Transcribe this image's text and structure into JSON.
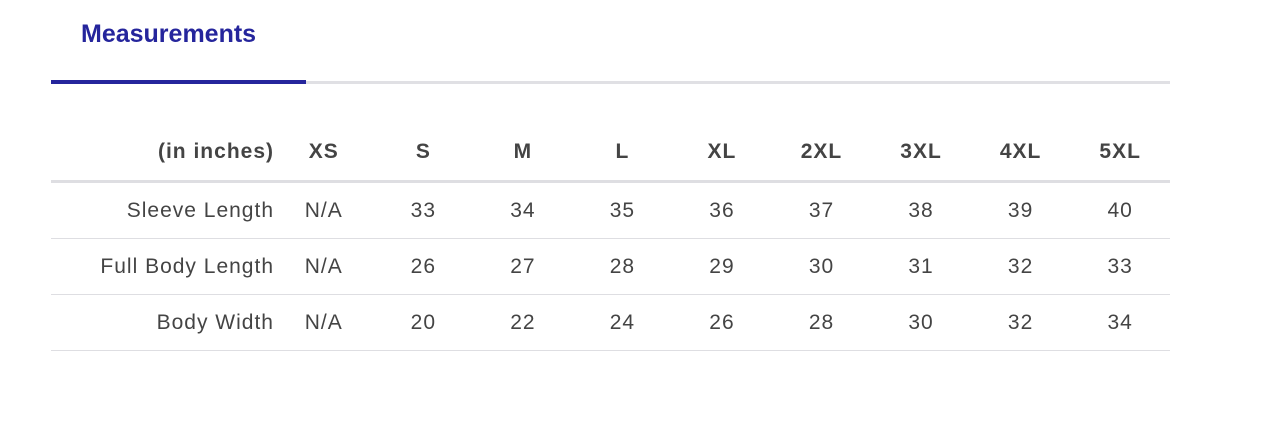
{
  "tabs": [
    {
      "label": "Measurements",
      "active": true
    }
  ],
  "accent_color": "#25259c",
  "table": {
    "unit_header": "(in inches)",
    "sizes": [
      "XS",
      "S",
      "M",
      "L",
      "XL",
      "2XL",
      "3XL",
      "4XL",
      "5XL"
    ],
    "rows": [
      {
        "label": "Sleeve Length",
        "values": [
          "N/A",
          "33",
          "34",
          "35",
          "36",
          "37",
          "38",
          "39",
          "40"
        ]
      },
      {
        "label": "Full Body Length",
        "values": [
          "N/A",
          "26",
          "27",
          "28",
          "29",
          "30",
          "31",
          "32",
          "33"
        ]
      },
      {
        "label": "Body Width",
        "values": [
          "N/A",
          "20",
          "22",
          "24",
          "26",
          "28",
          "30",
          "32",
          "34"
        ]
      }
    ]
  }
}
